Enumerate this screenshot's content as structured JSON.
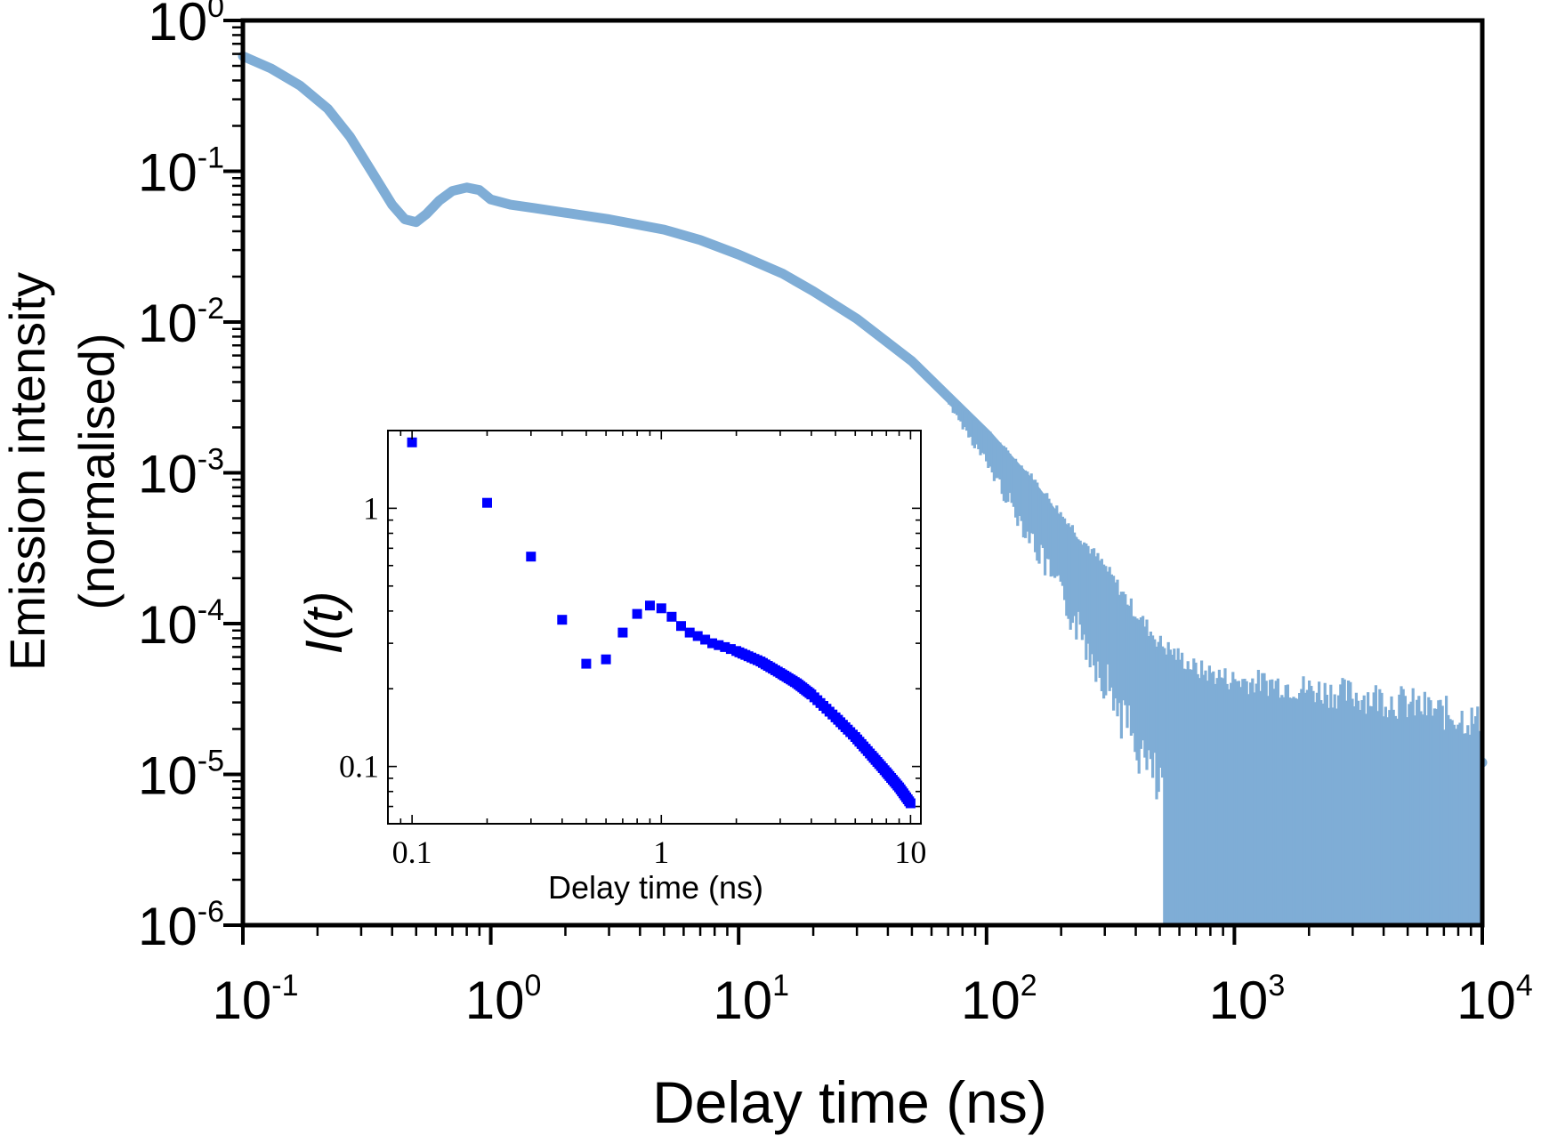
{
  "chart_data": [
    {
      "type": "line",
      "xscale": "log",
      "yscale": "log",
      "xlabel": "Delay time (ns)",
      "ylabel_line1": "Emission intensity",
      "ylabel_line2": "(normalised)",
      "xlim": [
        0.1,
        10000
      ],
      "ylim": [
        1e-06,
        1
      ],
      "x_ticks": [
        {
          "base": "10",
          "exp": "-1"
        },
        {
          "base": "10",
          "exp": "0"
        },
        {
          "base": "10",
          "exp": "1"
        },
        {
          "base": "10",
          "exp": "2"
        },
        {
          "base": "10",
          "exp": "3"
        },
        {
          "base": "10",
          "exp": "4"
        }
      ],
      "y_ticks": [
        {
          "base": "10",
          "exp": "0"
        },
        {
          "base": "10",
          "exp": "-1"
        },
        {
          "base": "10",
          "exp": "-2"
        },
        {
          "base": "10",
          "exp": "-3"
        },
        {
          "base": "10",
          "exp": "-4"
        },
        {
          "base": "10",
          "exp": "-5"
        },
        {
          "base": "10",
          "exp": "-6"
        }
      ],
      "grid": false,
      "legend": "none",
      "series": [
        {
          "color": "#7fadd6",
          "x": [
            0.1,
            0.13,
            0.17,
            0.22,
            0.27,
            0.33,
            0.4,
            0.45,
            0.5,
            0.55,
            0.62,
            0.7,
            0.8,
            0.9,
            1.0,
            1.2,
            1.5,
            2,
            3,
            5,
            7,
            10,
            15,
            20,
            30,
            50,
            70,
            100,
            150,
            200,
            300,
            400,
            500,
            700,
            1000,
            1500,
            2000,
            3000,
            5000,
            10000
          ],
          "y": [
            0.58,
            0.48,
            0.37,
            0.26,
            0.17,
            0.1,
            0.06,
            0.048,
            0.046,
            0.052,
            0.064,
            0.074,
            0.078,
            0.075,
            0.065,
            0.06,
            0.057,
            0.053,
            0.048,
            0.041,
            0.035,
            0.028,
            0.021,
            0.016,
            0.0105,
            0.0055,
            0.0032,
            0.0018,
            0.00085,
            0.00045,
            0.00019,
            9e-05,
            5.5e-05,
            3.5e-05,
            2.8e-05,
            2.5e-05,
            2.2e-05,
            1.9e-05,
            1.6e-05,
            1.2e-05
          ],
          "noise_floor": 1e-06
        }
      ]
    },
    {
      "type": "scatter",
      "xscale": "log",
      "yscale": "log",
      "xlabel": "Delay time (ns)",
      "ylabel_main": "I",
      "ylabel_paren": "(t)",
      "xlim": [
        0.08,
        11
      ],
      "ylim": [
        0.06,
        2
      ],
      "x_ticks": [
        "0.1",
        "1",
        "10"
      ],
      "y_ticks": [
        "0.1",
        "1"
      ],
      "grid": false,
      "legend": "none",
      "series": [
        {
          "color": "#0000ff",
          "x": [
            0.1,
            0.2,
            0.3,
            0.4,
            0.5,
            0.6,
            0.7,
            0.8,
            0.9,
            1.0,
            1.1,
            1.2,
            1.3,
            1.4,
            1.5,
            1.6,
            1.7,
            1.8,
            1.9,
            2.0,
            2.5,
            3,
            3.5,
            4,
            5,
            6,
            7,
            8,
            9,
            10
          ],
          "y": [
            1.8,
            1.05,
            0.65,
            0.37,
            0.25,
            0.26,
            0.33,
            0.39,
            0.42,
            0.41,
            0.38,
            0.35,
            0.33,
            0.32,
            0.31,
            0.3,
            0.295,
            0.29,
            0.285,
            0.28,
            0.255,
            0.23,
            0.21,
            0.19,
            0.155,
            0.13,
            0.11,
            0.095,
            0.083,
            0.072
          ]
        }
      ]
    }
  ]
}
